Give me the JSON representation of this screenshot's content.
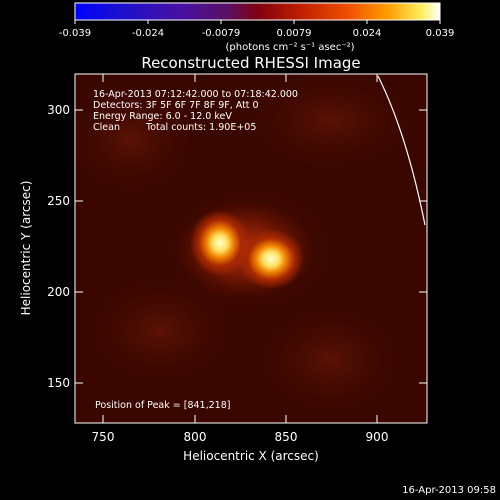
{
  "colorbar": {
    "tick_labels": [
      "-0.039",
      "-0.024",
      "-0.0079",
      "0.0079",
      "0.024",
      "0.039"
    ],
    "units": "(photons cm⁻² s⁻¹ asec⁻²)"
  },
  "plot": {
    "title": "Reconstructed RHESSI Image",
    "xlabel": "Heliocentric X (arcsec)",
    "ylabel": "Heliocentric Y (arcsec)",
    "x_ticks": [
      "750",
      "800",
      "850",
      "900"
    ],
    "y_ticks": [
      "300",
      "250",
      "200",
      "150"
    ]
  },
  "annotations": {
    "time_range": "16-Apr-2013 07:12:42.000 to 07:18:42.000",
    "detectors": "Detectors: 3F 5F 6F 7F 8F 9F, Att 0",
    "energy": "Energy Range: 6.0 - 12.0 keV",
    "clean_label": "Clean",
    "total_counts": "Total counts: 1.90E+05",
    "peak": "Position of Peak = [841,218]"
  },
  "footer": {
    "timestamp": "16-Apr-2013 09:58"
  },
  "chart_data": {
    "type": "heatmap",
    "title": "Reconstructed RHESSI Image",
    "xlabel": "Heliocentric X (arcsec)",
    "ylabel": "Heliocentric Y (arcsec)",
    "xlim": [
      735,
      927
    ],
    "ylim": [
      128,
      323
    ],
    "colorbar_range": [
      -0.039,
      0.039
    ],
    "peak_position": [
      841,
      218
    ],
    "sources": [
      {
        "x": 814,
        "y": 226,
        "relative_intensity": 0.9
      },
      {
        "x": 841,
        "y": 218,
        "relative_intensity": 1.0
      }
    ],
    "colors": {
      "background": "#000000",
      "image_base": "#3a0700",
      "limb": "#ffffff"
    }
  }
}
